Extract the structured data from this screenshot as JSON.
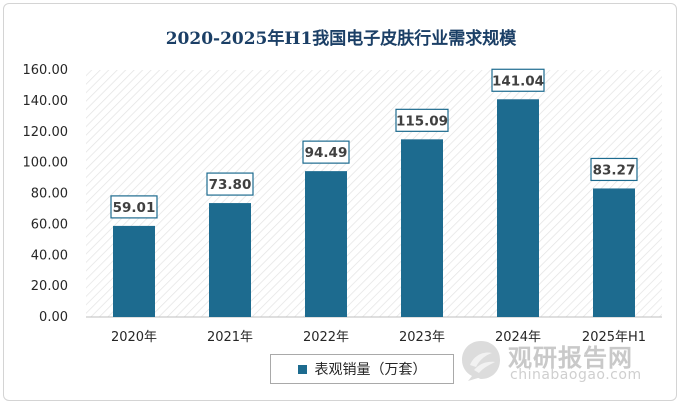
{
  "chart_data": {
    "type": "bar",
    "title": "2020-2025年H1我国电子皮肤行业需求规模",
    "categories": [
      "2020年",
      "2021年",
      "2022年",
      "2023年",
      "2024年",
      "2025年H1"
    ],
    "series": [
      {
        "name": "表观销量（万套）",
        "values": [
          59.01,
          73.8,
          94.49,
          115.09,
          141.04,
          83.27
        ]
      }
    ],
    "data_labels": [
      "59.01",
      "73.80",
      "94.49",
      "115.09",
      "141.04",
      "83.27"
    ],
    "ylim": [
      0,
      160
    ],
    "yticks": [
      "0.00",
      "20.00",
      "40.00",
      "60.00",
      "80.00",
      "100.00",
      "120.00",
      "140.00",
      "160.00"
    ],
    "ytick_values": [
      0,
      20,
      40,
      60,
      80,
      100,
      120,
      140,
      160
    ],
    "legend_position": "bottom",
    "grid": false,
    "bar_color": "#1d6b8f"
  },
  "watermark": {
    "name_cn": "观研报告网",
    "site": "chinabaogao.com",
    "logo_icon": "chinabaogao-logo-icon"
  }
}
